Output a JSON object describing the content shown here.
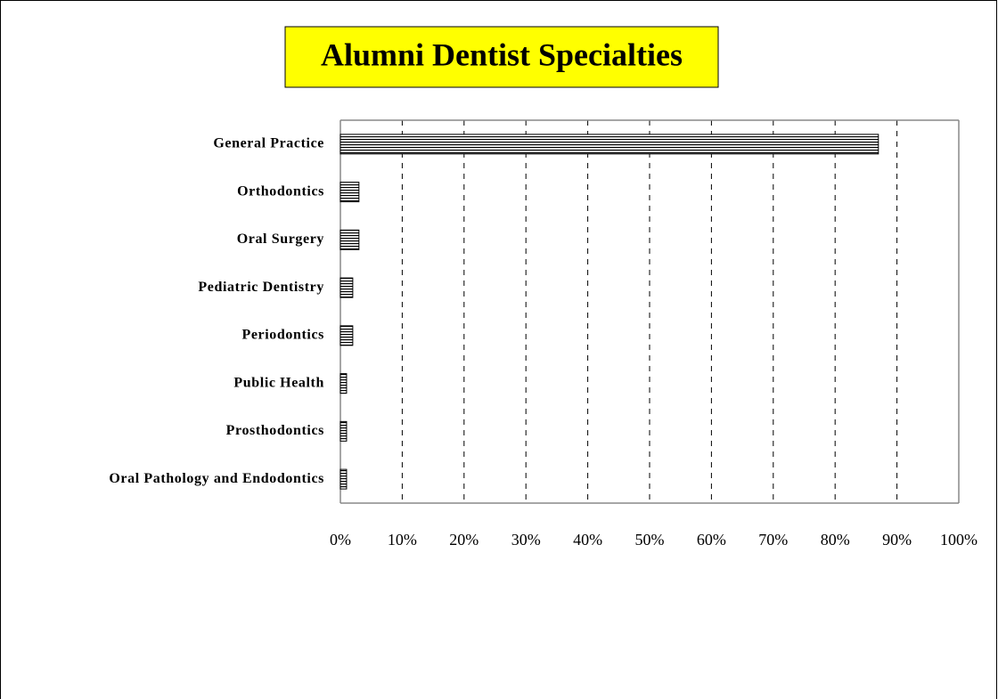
{
  "chart_data": {
    "type": "barh",
    "title": "Alumni  Dentist Specialties",
    "categories": [
      "General Practice",
      "Orthodontics",
      "Oral Surgery",
      "Pediatric Dentistry",
      "Periodontics",
      "Public Health",
      "Prosthodontics",
      "Oral Pathology and Endodontics"
    ],
    "values": [
      87,
      3,
      3,
      2,
      2,
      1,
      1,
      1
    ],
    "color": "#000000",
    "fill_pattern": "horizontal-lines",
    "xlim": [
      0,
      100
    ],
    "xticks": [
      {
        "value": 0,
        "label": "0%"
      },
      {
        "value": 10,
        "label": "10%"
      },
      {
        "value": 20,
        "label": "20%"
      },
      {
        "value": 30,
        "label": "30%"
      },
      {
        "value": 40,
        "label": "40%"
      },
      {
        "value": 50,
        "label": "50%"
      },
      {
        "value": 60,
        "label": "60%"
      },
      {
        "value": 70,
        "label": "70%"
      },
      {
        "value": 80,
        "label": "80%"
      },
      {
        "value": 90,
        "label": "90%"
      },
      {
        "value": 100,
        "label": "100%"
      }
    ],
    "grid": true
  }
}
